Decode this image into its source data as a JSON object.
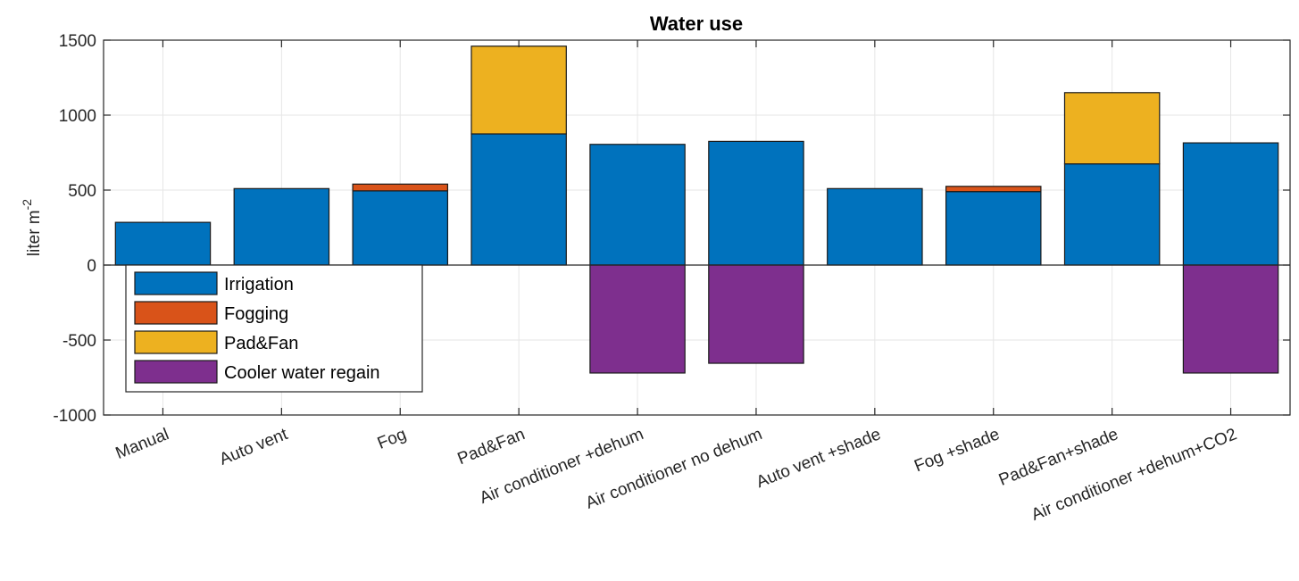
{
  "chart_data": {
    "type": "bar",
    "stacked": true,
    "title": "Water use",
    "ylabel": "liter m",
    "ylabel_sup": "-2",
    "xlabel": "",
    "ylim": [
      -1000,
      1500
    ],
    "yticks": [
      -1000,
      -500,
      0,
      500,
      1000,
      1500
    ],
    "ytick_labels": [
      "-1000",
      "-500",
      "0",
      "500",
      "1000",
      "1500"
    ],
    "grid": true,
    "legend_position": "bottom-left",
    "categories": [
      "Manual",
      "Auto vent",
      "Fog",
      "Pad&Fan",
      "Air conditioner +dehum",
      "Air conditioner no dehum",
      "Auto vent +shade",
      "Fog +shade",
      "Pad&Fan+shade",
      "Air conditioner +dehum+CO2"
    ],
    "series": [
      {
        "name": "Irrigation",
        "color": "#0072BD",
        "values": [
          285,
          510,
          495,
          875,
          805,
          825,
          510,
          490,
          675,
          815
        ]
      },
      {
        "name": "Fogging",
        "color": "#D95319",
        "values": [
          0,
          0,
          45,
          0,
          0,
          0,
          0,
          35,
          0,
          0
        ]
      },
      {
        "name": "Pad&Fan",
        "color": "#EDB120",
        "values": [
          0,
          0,
          0,
          585,
          0,
          0,
          0,
          0,
          475,
          0
        ]
      },
      {
        "name": "Cooler water regain",
        "color": "#7E2F8E",
        "values": [
          0,
          0,
          0,
          0,
          -720,
          -655,
          0,
          0,
          0,
          -720
        ]
      }
    ]
  }
}
